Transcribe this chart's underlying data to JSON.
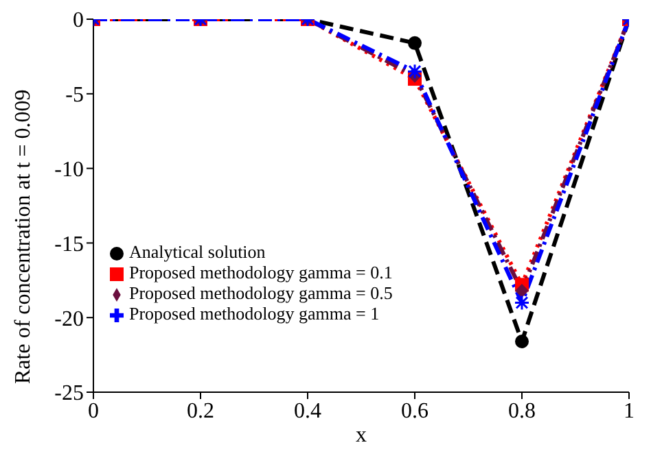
{
  "chart_data": {
    "type": "line",
    "xlabel": "x",
    "ylabel": "Rate of concentration at t = 0.009",
    "x": [
      0,
      0.2,
      0.4,
      0.6,
      0.8,
      1
    ],
    "series": [
      {
        "name": "Analytical solution",
        "color": "#000000",
        "marker": "circle",
        "line_style": "dashed",
        "values": [
          0,
          0,
          0,
          -1.6,
          -21.6,
          0
        ]
      },
      {
        "name": "Proposed methodology gamma = 0.1",
        "color": "#ff0000",
        "marker": "square",
        "line_style": "dotted",
        "values": [
          0,
          0,
          0,
          -4.0,
          -17.8,
          0
        ]
      },
      {
        "name": "Proposed methodology gamma = 0.5",
        "color": "#6b0f3f",
        "marker": "diamond",
        "line_style": "dashdot",
        "values": [
          0,
          0,
          0,
          -3.8,
          -18.2,
          0
        ]
      },
      {
        "name": "Proposed methodology gamma = 1",
        "color": "#0000ff",
        "marker": "cross",
        "line_style": "dashdot",
        "values": [
          0,
          0,
          0,
          -3.5,
          -19.0,
          0
        ]
      }
    ],
    "xlim": [
      0,
      1
    ],
    "xticks": [
      0,
      0.2,
      0.4,
      0.6,
      0.8,
      1
    ],
    "ylim": [
      -25,
      0
    ],
    "yticks": [
      -25,
      -20,
      -15,
      -10,
      -5,
      0
    ],
    "grid": false,
    "legend": "left"
  }
}
